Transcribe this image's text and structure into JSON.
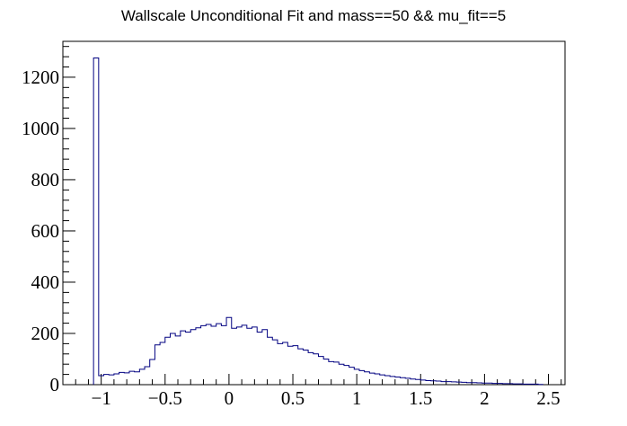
{
  "chart_data": {
    "type": "histogram",
    "title": "Wallscale Unconditional Fit and mass==50 && mu_fit==5",
    "xlabel": "",
    "ylabel": "",
    "xlim": [
      -1.3,
      2.63
    ],
    "ylim": [
      0,
      1340
    ],
    "x_ticks": [
      -1,
      -0.5,
      0,
      0.5,
      1,
      1.5,
      2,
      2.5
    ],
    "x_tick_labels": [
      "−1",
      "−0.5",
      "0",
      "0.5",
      "1",
      "1.5",
      "2",
      "2.5"
    ],
    "y_ticks": [
      0,
      200,
      400,
      600,
      800,
      1000,
      1200
    ],
    "y_tick_labels": [
      "0",
      "200",
      "400",
      "600",
      "800",
      "1000",
      "1200"
    ],
    "grid": false,
    "legend": "none",
    "line_color": "#000080",
    "bin_width": 0.04,
    "bin_start": -1.06,
    "values": [
      1275,
      35,
      40,
      38,
      42,
      48,
      46,
      52,
      50,
      60,
      70,
      98,
      155,
      165,
      185,
      200,
      190,
      210,
      205,
      215,
      222,
      230,
      235,
      228,
      238,
      230,
      262,
      220,
      225,
      232,
      220,
      225,
      205,
      215,
      185,
      175,
      160,
      165,
      150,
      152,
      140,
      135,
      125,
      120,
      110,
      100,
      90,
      88,
      80,
      75,
      68,
      60,
      55,
      50,
      45,
      42,
      38,
      35,
      32,
      30,
      27,
      25,
      22,
      20,
      18,
      16,
      15,
      14,
      12,
      12,
      11,
      10,
      9,
      8,
      8,
      7,
      6,
      6,
      5,
      5,
      4,
      4,
      3,
      3,
      2,
      2,
      2,
      1
    ]
  }
}
